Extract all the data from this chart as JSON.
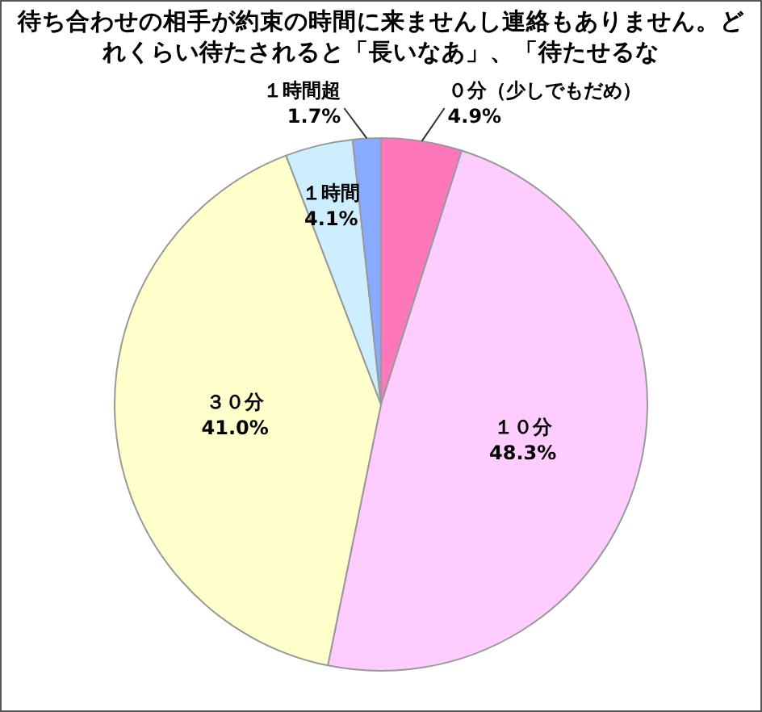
{
  "chart_data": {
    "type": "pie",
    "title": "待ち合わせの相手が約束の時間に来ませんし連絡もありません。どれくらい待たされると「長いなあ」、「待たせるな",
    "categories": [
      "０分（少しでもだめ）",
      "１０分",
      "３０分",
      "１時間",
      "１時間超"
    ],
    "values": [
      4.9,
      48.3,
      41.0,
      4.1,
      1.7
    ],
    "value_labels": [
      "4.9%",
      "48.3%",
      "41.0%",
      "4.1%",
      "1.7%"
    ],
    "colors": [
      "#ff77bb",
      "#ffccff",
      "#ffffcc",
      "#cceeff",
      "#88aaff"
    ],
    "legend": false
  }
}
